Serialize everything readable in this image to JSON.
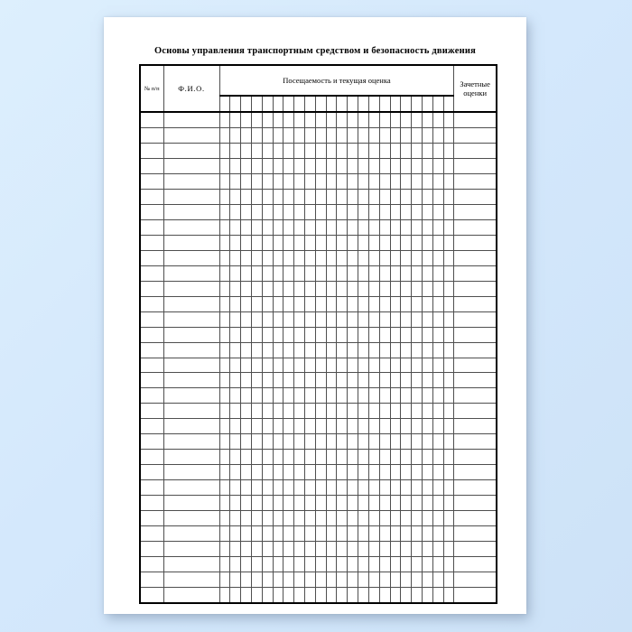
{
  "document": {
    "title": "Основы управления транспортным средством и безопасность движения"
  },
  "table": {
    "headers": {
      "number": "№ п/п",
      "name": "Ф.И.О.",
      "attendance": "Посещаемость и текущая оценка",
      "credit": "Зачетные оценки"
    },
    "attendance_subcolumns": 22,
    "body_rows": 32
  },
  "colors": {
    "background_top": "#ddeffd",
    "background_bottom": "#cde2f7",
    "page": "#ffffff",
    "border_thick": "#000000",
    "border_thin": "#4f4f4f"
  }
}
